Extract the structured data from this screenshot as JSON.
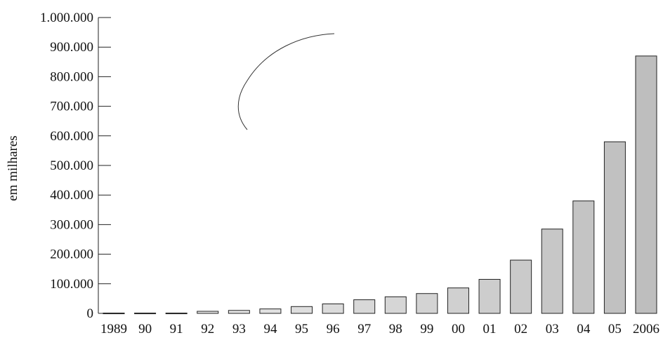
{
  "chart_data": {
    "type": "bar",
    "title": "",
    "xlabel": "",
    "ylabel": "em milhares",
    "ylim": [
      0,
      1000000
    ],
    "yticks": [
      {
        "value": 0,
        "label": "0"
      },
      {
        "value": 100000,
        "label": "100.000"
      },
      {
        "value": 200000,
        "label": "200.000"
      },
      {
        "value": 300000,
        "label": "300.000"
      },
      {
        "value": 400000,
        "label": "400.000"
      },
      {
        "value": 500000,
        "label": "500.000"
      },
      {
        "value": 600000,
        "label": "600.000"
      },
      {
        "value": 700000,
        "label": "700.000"
      },
      {
        "value": 800000,
        "label": "800.000"
      },
      {
        "value": 900000,
        "label": "900.000"
      },
      {
        "value": 1000000,
        "label": "1.000.000"
      }
    ],
    "categories": [
      "1989",
      "90",
      "91",
      "92",
      "93",
      "94",
      "95",
      "96",
      "97",
      "98",
      "99",
      "00",
      "01",
      "02",
      "03",
      "04",
      "05",
      "2006"
    ],
    "values": [
      1000,
      1000,
      1000,
      7000,
      10000,
      15000,
      23000,
      32000,
      46000,
      56000,
      67000,
      86000,
      115000,
      180000,
      285000,
      380000,
      580000,
      870000
    ],
    "grid": false,
    "colors": {
      "bar_outline": "#222222",
      "bar_fill_light": "#f4f4f4",
      "bar_fill_dark": "#bdbdbd"
    }
  }
}
